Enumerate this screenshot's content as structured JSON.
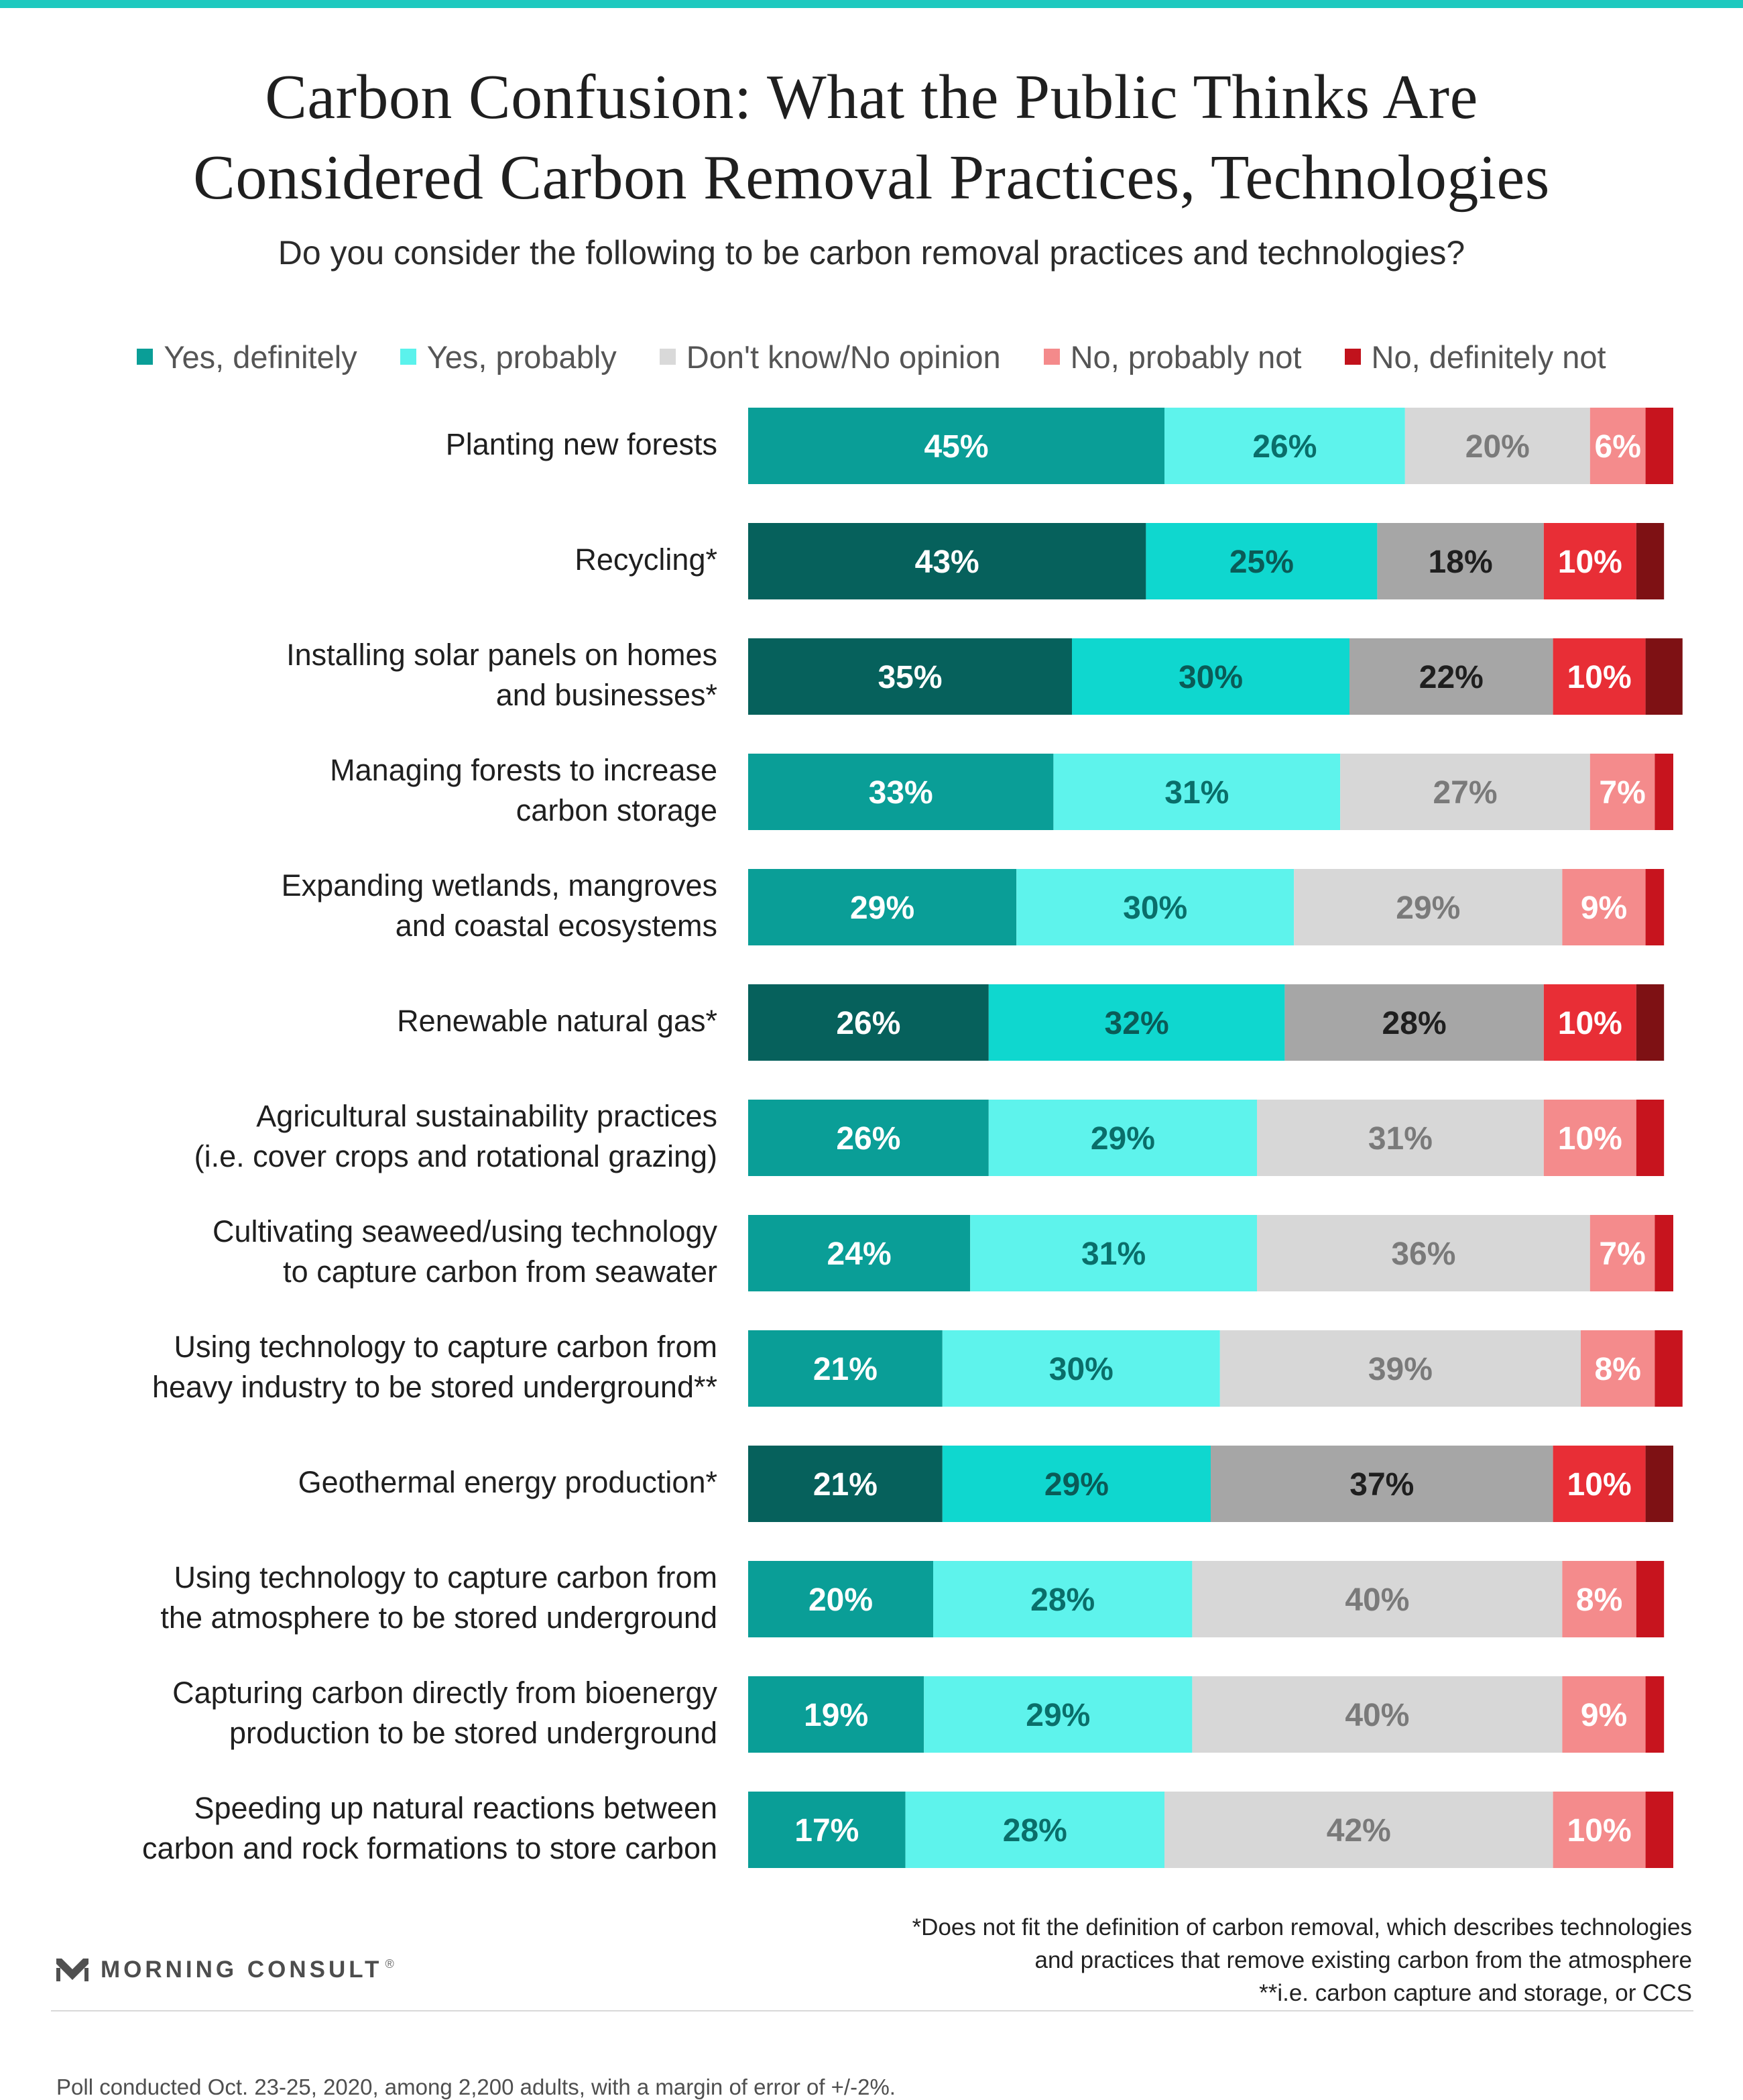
{
  "page": {
    "title_lines": [
      "Carbon Confusion: What the Public Thinks Are",
      "Considered Carbon Removal Practices, Technologies"
    ],
    "subtitle": "Do you consider the following to be carbon removal practices and technologies?",
    "footnotes": [
      "*Does not fit the definition of carbon removal, which describes technologies",
      "and practices that remove existing carbon from the atmosphere",
      "**i.e. carbon capture and storage, or CCS"
    ],
    "logo_text": "MORNING CONSULT",
    "logo_mark": "®",
    "source": "Poll conducted Oct. 23-25, 2020, among 2,200 adults, with a margin of error of +/-2%."
  },
  "colors": {
    "top_rule": "#1ec9bf",
    "legend": [
      "#0a9e97",
      "#5bf2ec",
      "#d9d9d9",
      "#f48a8b",
      "#c1121c"
    ],
    "normal": [
      "#0a9e97",
      "#5ef3ec",
      "#d7d7d7",
      "#f48b8c",
      "#c7141e"
    ],
    "starred": [
      "#06615c",
      "#0fd7cf",
      "#a6a6a6",
      "#e82e36",
      "#7e1114"
    ],
    "label_normal": [
      "#ffffff",
      "#0a6e6a",
      "#7a7a7a",
      "#ffffff",
      "#ffffff"
    ],
    "label_starred": [
      "#ffffff",
      "#0a5b57",
      "#1f1f1f",
      "#ffffff",
      "#ffffff"
    ]
  },
  "chart_data": {
    "type": "bar",
    "orientation": "horizontal",
    "stacked": true,
    "unit": "%",
    "legend_position": "top",
    "xlim": [
      0,
      100
    ],
    "series_names": [
      "Yes, definitely",
      "Yes, probably",
      "Don't know/No opinion",
      "No, probably not",
      "No, definitely not"
    ],
    "categories": [
      {
        "lines": [
          "Planting new forests"
        ],
        "values": [
          45,
          26,
          20,
          6,
          3
        ],
        "labels": [
          "45%",
          "26%",
          "20%",
          "6%",
          ""
        ],
        "starred": false
      },
      {
        "lines": [
          "Recycling*"
        ],
        "values": [
          43,
          25,
          18,
          10,
          3
        ],
        "labels": [
          "43%",
          "25%",
          "18%",
          "10%",
          ""
        ],
        "starred": true
      },
      {
        "lines": [
          "Installing solar panels on homes",
          "and businesses*"
        ],
        "values": [
          35,
          30,
          22,
          10,
          4
        ],
        "labels": [
          "35%",
          "30%",
          "22%",
          "10%",
          ""
        ],
        "starred": true
      },
      {
        "lines": [
          "Managing forests to increase",
          "carbon storage"
        ],
        "values": [
          33,
          31,
          27,
          7,
          2
        ],
        "labels": [
          "33%",
          "31%",
          "27%",
          "7%",
          ""
        ],
        "starred": false
      },
      {
        "lines": [
          "Expanding wetlands, mangroves",
          "and coastal ecosystems"
        ],
        "values": [
          29,
          30,
          29,
          9,
          2
        ],
        "labels": [
          "29%",
          "30%",
          "29%",
          "9%",
          ""
        ],
        "starred": false
      },
      {
        "lines": [
          "Renewable natural gas*"
        ],
        "values": [
          26,
          32,
          28,
          10,
          3
        ],
        "labels": [
          "26%",
          "32%",
          "28%",
          "10%",
          ""
        ],
        "starred": true
      },
      {
        "lines": [
          "Agricultural sustainability practices",
          "(i.e. cover crops and rotational grazing)"
        ],
        "values": [
          26,
          29,
          31,
          10,
          3
        ],
        "labels": [
          "26%",
          "29%",
          "31%",
          "10%",
          ""
        ],
        "starred": false
      },
      {
        "lines": [
          "Cultivating seaweed/using technology",
          "to capture carbon from seawater"
        ],
        "values": [
          24,
          31,
          36,
          7,
          2
        ],
        "labels": [
          "24%",
          "31%",
          "36%",
          "7%",
          ""
        ],
        "starred": false
      },
      {
        "lines": [
          "Using technology to capture carbon from",
          "heavy industry to be stored underground**"
        ],
        "values": [
          21,
          30,
          39,
          8,
          3
        ],
        "labels": [
          "21%",
          "30%",
          "39%",
          "8%",
          ""
        ],
        "starred": false
      },
      {
        "lines": [
          "Geothermal energy production*"
        ],
        "values": [
          21,
          29,
          37,
          10,
          3
        ],
        "labels": [
          "21%",
          "29%",
          "37%",
          "10%",
          ""
        ],
        "starred": true
      },
      {
        "lines": [
          "Using technology to capture carbon from",
          "the atmosphere to be stored underground"
        ],
        "values": [
          20,
          28,
          40,
          8,
          3
        ],
        "labels": [
          "20%",
          "28%",
          "40%",
          "8%",
          ""
        ],
        "starred": false
      },
      {
        "lines": [
          "Capturing carbon directly from bioenergy",
          "production to be stored underground"
        ],
        "values": [
          19,
          29,
          40,
          9,
          2
        ],
        "labels": [
          "19%",
          "29%",
          "40%",
          "9%",
          ""
        ],
        "starred": false
      },
      {
        "lines": [
          "Speeding up natural reactions between",
          "carbon and rock formations to store carbon"
        ],
        "values": [
          17,
          28,
          42,
          10,
          3
        ],
        "labels": [
          "17%",
          "28%",
          "42%",
          "10%",
          ""
        ],
        "starred": false
      }
    ]
  }
}
